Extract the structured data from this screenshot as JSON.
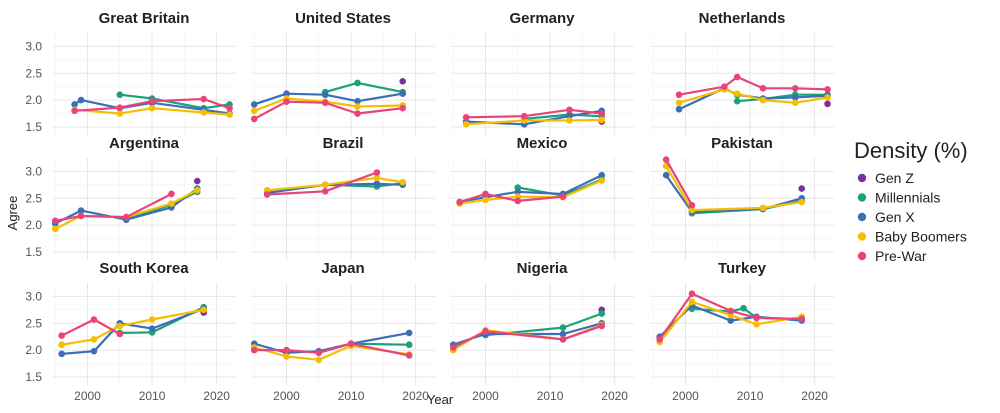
{
  "chart_data": {
    "type": "line",
    "xlabel": "Year",
    "ylabel": "Agree",
    "xlim": [
      1994.5,
      2023
    ],
    "ylim": [
      1.35,
      3.25
    ],
    "x_ticks": [
      2000,
      2010,
      2020
    ],
    "y_ticks": [
      1.5,
      2.0,
      2.5,
      3.0
    ],
    "y_tick_labels": [
      "1.5",
      "2.0",
      "2.5",
      "3.0"
    ],
    "grid": true,
    "legend": {
      "title": "Density (%)",
      "position": "right",
      "entries": [
        {
          "key": "genz",
          "label": "Gen Z",
          "color": "#7B3294"
        },
        {
          "key": "mill",
          "label": "Millennials",
          "color": "#1AA37A"
        },
        {
          "key": "genx",
          "label": "Gen X",
          "color": "#3A6FB5"
        },
        {
          "key": "boom",
          "label": "Baby Boomers",
          "color": "#F6BE00"
        },
        {
          "key": "prew",
          "label": "Pre-War",
          "color": "#E8437A"
        }
      ]
    },
    "panels": [
      {
        "title": "Great Britain",
        "series": {
          "prew": [
            [
              1998,
              1.8
            ],
            [
              2005,
              1.86
            ],
            [
              2010,
              1.98
            ],
            [
              2018,
              2.02
            ],
            [
              2022,
              1.85
            ]
          ],
          "boom": [
            [
              1998,
              1.82
            ],
            [
              2005,
              1.75
            ],
            [
              2010,
              1.85
            ],
            [
              2018,
              1.77
            ],
            [
              2022,
              1.73
            ]
          ],
          "genx": [
            [
              1998,
              1.92
            ],
            [
              1999,
              2.0
            ],
            [
              2005,
              1.85
            ],
            [
              2010,
              1.95
            ],
            [
              2018,
              1.82
            ],
            [
              2022,
              1.75
            ]
          ],
          "mill": [
            [
              2005,
              2.1
            ],
            [
              2010,
              2.03
            ],
            [
              2018,
              1.85
            ],
            [
              2022,
              1.92
            ]
          ],
          "genz": []
        }
      },
      {
        "title": "United States",
        "series": {
          "prew": [
            [
              1995,
              1.65
            ],
            [
              2000,
              1.97
            ],
            [
              2006,
              1.95
            ],
            [
              2011,
              1.75
            ],
            [
              2018,
              1.85
            ]
          ],
          "boom": [
            [
              1995,
              1.8
            ],
            [
              2000,
              2.03
            ],
            [
              2006,
              1.97
            ],
            [
              2011,
              1.88
            ],
            [
              2018,
              1.9
            ]
          ],
          "genx": [
            [
              1995,
              1.92
            ],
            [
              2000,
              2.12
            ],
            [
              2006,
              2.1
            ],
            [
              2011,
              1.98
            ],
            [
              2018,
              2.12
            ]
          ],
          "mill": [
            [
              2006,
              2.15
            ],
            [
              2011,
              2.32
            ],
            [
              2018,
              2.15
            ]
          ],
          "genz": [
            [
              2018,
              2.35
            ]
          ]
        }
      },
      {
        "title": "Germany",
        "series": {
          "prew": [
            [
              1997,
              1.68
            ],
            [
              2006,
              1.7
            ],
            [
              2013,
              1.82
            ],
            [
              2018,
              1.75
            ]
          ],
          "boom": [
            [
              1997,
              1.55
            ],
            [
              2006,
              1.62
            ],
            [
              2013,
              1.62
            ],
            [
              2018,
              1.63
            ]
          ],
          "genx": [
            [
              1997,
              1.6
            ],
            [
              2006,
              1.55
            ],
            [
              2013,
              1.7
            ],
            [
              2018,
              1.8
            ]
          ],
          "mill": [
            [
              2006,
              1.65
            ],
            [
              2013,
              1.73
            ],
            [
              2018,
              1.7
            ]
          ],
          "genz": [
            [
              2018,
              1.6
            ]
          ]
        }
      },
      {
        "title": "Netherlands",
        "series": {
          "prew": [
            [
              1999,
              2.1
            ],
            [
              2006,
              2.25
            ],
            [
              2008,
              2.43
            ],
            [
              2012,
              2.22
            ],
            [
              2017,
              2.22
            ],
            [
              2022,
              2.2
            ]
          ],
          "boom": [
            [
              1999,
              1.95
            ],
            [
              2006,
              2.2
            ],
            [
              2008,
              2.12
            ],
            [
              2012,
              2.0
            ],
            [
              2017,
              1.95
            ],
            [
              2022,
              2.05
            ]
          ],
          "genx": [
            [
              1999,
              1.83
            ],
            [
              2006,
              2.22
            ],
            [
              2008,
              2.1
            ],
            [
              2012,
              2.03
            ],
            [
              2017,
              2.05
            ],
            [
              2022,
              2.08
            ]
          ],
          "mill": [
            [
              2008,
              1.98
            ],
            [
              2012,
              2.02
            ],
            [
              2017,
              2.1
            ],
            [
              2022,
              2.1
            ]
          ],
          "genz": [
            [
              2022,
              1.93
            ]
          ]
        }
      },
      {
        "title": "Argentina",
        "series": {
          "prew": [
            [
              1995,
              2.08
            ],
            [
              1999,
              2.17
            ],
            [
              2006,
              2.15
            ],
            [
              2013,
              2.58
            ]
          ],
          "boom": [
            [
              1995,
              1.93
            ],
            [
              1999,
              2.17
            ],
            [
              2006,
              2.15
            ],
            [
              2013,
              2.4
            ],
            [
              2017,
              2.65
            ]
          ],
          "genx": [
            [
              1995,
              2.03
            ],
            [
              1999,
              2.27
            ],
            [
              2006,
              2.1
            ],
            [
              2013,
              2.33
            ],
            [
              2017,
              2.68
            ]
          ],
          "mill": [
            [
              2006,
              2.12
            ],
            [
              2013,
              2.38
            ],
            [
              2017,
              2.62
            ]
          ],
          "genz": [
            [
              2017,
              2.82
            ]
          ]
        }
      },
      {
        "title": "Brazil",
        "series": {
          "prew": [
            [
              1997,
              2.57
            ],
            [
              2006,
              2.63
            ],
            [
              2014,
              2.98
            ]
          ],
          "boom": [
            [
              1997,
              2.65
            ],
            [
              2006,
              2.75
            ],
            [
              2014,
              2.88
            ],
            [
              2018,
              2.8
            ]
          ],
          "genx": [
            [
              1997,
              2.6
            ],
            [
              2006,
              2.75
            ],
            [
              2014,
              2.77
            ],
            [
              2018,
              2.75
            ]
          ],
          "mill": [
            [
              2006,
              2.75
            ],
            [
              2014,
              2.72
            ],
            [
              2018,
              2.78
            ]
          ],
          "genz": []
        }
      },
      {
        "title": "Mexico",
        "series": {
          "prew": [
            [
              1996,
              2.43
            ],
            [
              2000,
              2.58
            ],
            [
              2005,
              2.45
            ],
            [
              2012,
              2.53
            ]
          ],
          "boom": [
            [
              1996,
              2.4
            ],
            [
              2000,
              2.47
            ],
            [
              2005,
              2.53
            ],
            [
              2012,
              2.52
            ],
            [
              2018,
              2.83
            ]
          ],
          "genx": [
            [
              1996,
              2.43
            ],
            [
              2000,
              2.52
            ],
            [
              2005,
              2.62
            ],
            [
              2012,
              2.58
            ],
            [
              2018,
              2.93
            ]
          ],
          "mill": [
            [
              2005,
              2.7
            ],
            [
              2012,
              2.55
            ],
            [
              2018,
              2.85
            ]
          ],
          "genz": []
        }
      },
      {
        "title": "Pakistan",
        "series": {
          "prew": [
            [
              1997,
              3.22
            ],
            [
              2001,
              2.37
            ]
          ],
          "boom": [
            [
              1997,
              3.1
            ],
            [
              2001,
              2.28
            ],
            [
              2012,
              2.32
            ],
            [
              2018,
              2.43
            ]
          ],
          "genx": [
            [
              1997,
              2.93
            ],
            [
              2001,
              2.25
            ],
            [
              2012,
              2.3
            ],
            [
              2018,
              2.5
            ]
          ],
          "mill": [
            [
              2001,
              2.22
            ],
            [
              2012,
              2.3
            ],
            [
              2018,
              2.45
            ]
          ],
          "genz": [
            [
              2018,
              2.68
            ]
          ]
        }
      },
      {
        "title": "South Korea",
        "series": {
          "prew": [
            [
              1996,
              2.27
            ],
            [
              2001,
              2.57
            ],
            [
              2005,
              2.3
            ]
          ],
          "boom": [
            [
              1996,
              2.1
            ],
            [
              2001,
              2.2
            ],
            [
              2005,
              2.45
            ],
            [
              2010,
              2.57
            ],
            [
              2018,
              2.75
            ]
          ],
          "genx": [
            [
              1996,
              1.93
            ],
            [
              2001,
              1.98
            ],
            [
              2005,
              2.5
            ],
            [
              2010,
              2.4
            ],
            [
              2018,
              2.77
            ]
          ],
          "mill": [
            [
              2005,
              2.32
            ],
            [
              2010,
              2.33
            ],
            [
              2018,
              2.8
            ]
          ],
          "genz": [
            [
              2018,
              2.7
            ]
          ]
        }
      },
      {
        "title": "Japan",
        "series": {
          "prew": [
            [
              1995,
              2.0
            ],
            [
              2000,
              2.0
            ],
            [
              2005,
              1.95
            ],
            [
              2010,
              2.12
            ],
            [
              2019,
              1.9
            ]
          ],
          "boom": [
            [
              1995,
              2.05
            ],
            [
              2000,
              1.88
            ],
            [
              2005,
              1.82
            ],
            [
              2010,
              2.08
            ],
            [
              2019,
              1.92
            ]
          ],
          "genx": [
            [
              1995,
              2.12
            ],
            [
              2000,
              1.95
            ],
            [
              2005,
              1.98
            ],
            [
              2010,
              2.12
            ],
            [
              2019,
              2.32
            ]
          ],
          "mill": [
            [
              2010,
              2.12
            ],
            [
              2019,
              2.1
            ]
          ],
          "genz": []
        }
      },
      {
        "title": "Nigeria",
        "series": {
          "prew": [
            [
              1995,
              2.05
            ],
            [
              2000,
              2.35
            ],
            [
              2012,
              2.2
            ],
            [
              2018,
              2.45
            ]
          ],
          "boom": [
            [
              1995,
              2.0
            ],
            [
              2000,
              2.37
            ],
            [
              2012,
              2.2
            ],
            [
              2018,
              2.47
            ]
          ],
          "genx": [
            [
              1995,
              2.1
            ],
            [
              2000,
              2.3
            ],
            [
              2012,
              2.3
            ],
            [
              2018,
              2.5
            ]
          ],
          "mill": [
            [
              2000,
              2.28
            ],
            [
              2012,
              2.42
            ],
            [
              2018,
              2.68
            ]
          ],
          "genz": [
            [
              2018,
              2.75
            ]
          ]
        }
      },
      {
        "title": "Turkey",
        "series": {
          "prew": [
            [
              1996,
              2.2
            ],
            [
              2001,
              3.05
            ],
            [
              2007,
              2.73
            ],
            [
              2011,
              2.6
            ],
            [
              2018,
              2.58
            ]
          ],
          "boom": [
            [
              1996,
              2.15
            ],
            [
              2001,
              2.9
            ],
            [
              2007,
              2.65
            ],
            [
              2011,
              2.48
            ],
            [
              2018,
              2.62
            ]
          ],
          "genx": [
            [
              1996,
              2.25
            ],
            [
              2001,
              2.83
            ],
            [
              2007,
              2.55
            ],
            [
              2011,
              2.62
            ],
            [
              2018,
              2.55
            ]
          ],
          "mill": [
            [
              2001,
              2.77
            ],
            [
              2007,
              2.72
            ],
            [
              2009,
              2.78
            ],
            [
              2011,
              2.6
            ],
            [
              2018,
              2.58
            ]
          ],
          "genz": []
        }
      }
    ]
  }
}
